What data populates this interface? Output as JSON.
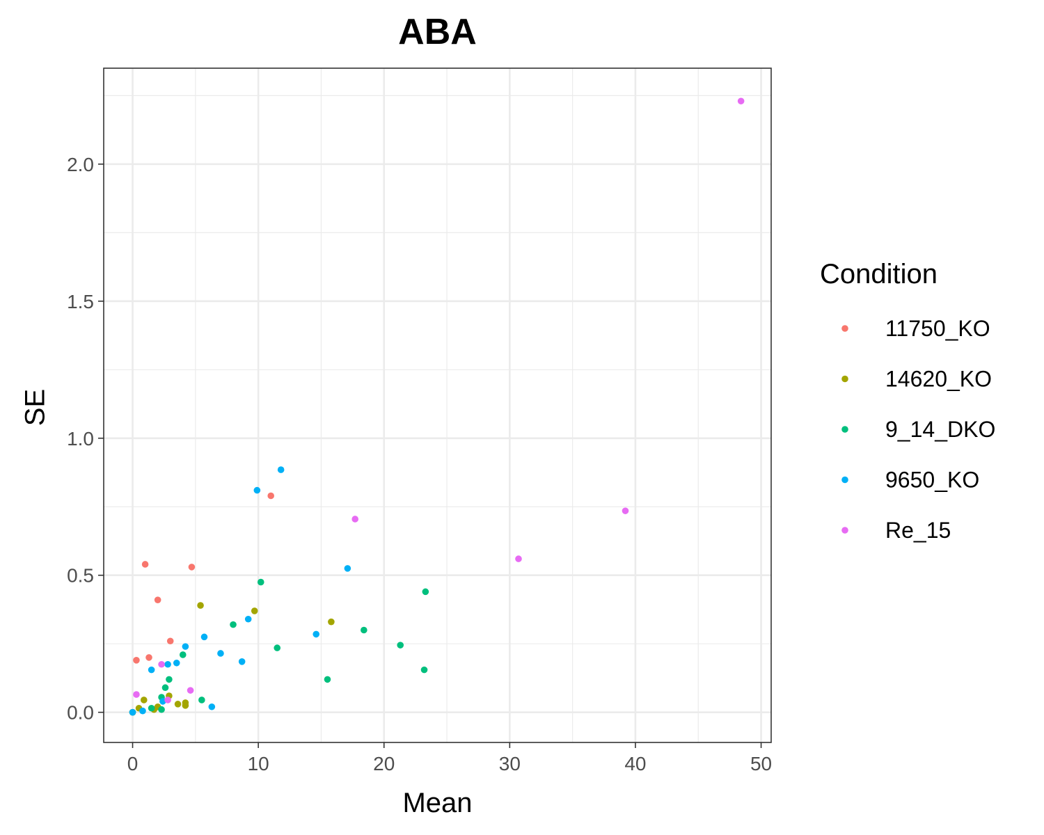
{
  "chart_data": {
    "type": "scatter",
    "title": "ABA",
    "xlabel": "Mean",
    "ylabel": "SE",
    "xlim": [
      -2.3,
      50.8
    ],
    "ylim": [
      -0.11,
      2.35
    ],
    "x_ticks": [
      0,
      10,
      20,
      30,
      40,
      50
    ],
    "x_tick_labels": [
      "0",
      "10",
      "20",
      "30",
      "40",
      "50"
    ],
    "y_ticks": [
      0.0,
      0.5,
      1.0,
      1.5,
      2.0
    ],
    "y_tick_labels": [
      "0.0",
      "0.5",
      "1.0",
      "1.5",
      "2.0"
    ],
    "grid": true,
    "legend_position": "right",
    "legend_title": "Condition",
    "series": [
      {
        "name": "11750_KO",
        "color": "#F8766D",
        "points": [
          [
            0.0,
            0.0
          ],
          [
            0.3,
            0.19
          ],
          [
            1.0,
            0.54
          ],
          [
            1.3,
            0.2
          ],
          [
            2.0,
            0.41
          ],
          [
            3.0,
            0.26
          ],
          [
            4.7,
            0.53
          ],
          [
            11.0,
            0.79
          ]
        ]
      },
      {
        "name": "14620_KO",
        "color": "#A3A500",
        "points": [
          [
            0.0,
            0.0
          ],
          [
            0.5,
            0.015
          ],
          [
            0.9,
            0.045
          ],
          [
            1.7,
            0.01
          ],
          [
            2.0,
            0.02
          ],
          [
            2.9,
            0.06
          ],
          [
            3.6,
            0.03
          ],
          [
            4.2,
            0.035
          ],
          [
            4.2,
            0.025
          ],
          [
            5.4,
            0.39
          ],
          [
            9.7,
            0.37
          ],
          [
            15.8,
            0.33
          ]
        ]
      },
      {
        "name": "9_14_DKO",
        "color": "#00BF7D",
        "points": [
          [
            0.0,
            0.0
          ],
          [
            1.5,
            0.015
          ],
          [
            2.3,
            0.055
          ],
          [
            2.3,
            0.01
          ],
          [
            2.6,
            0.09
          ],
          [
            2.9,
            0.12
          ],
          [
            4.0,
            0.21
          ],
          [
            5.5,
            0.045
          ],
          [
            8.0,
            0.32
          ],
          [
            10.2,
            0.475
          ],
          [
            11.5,
            0.235
          ],
          [
            15.5,
            0.12
          ],
          [
            18.4,
            0.3
          ],
          [
            21.3,
            0.245
          ],
          [
            23.2,
            0.155
          ],
          [
            23.3,
            0.44
          ]
        ]
      },
      {
        "name": "9650_KO",
        "color": "#00B0F6",
        "points": [
          [
            0.0,
            0.0
          ],
          [
            0.8,
            0.005
          ],
          [
            1.5,
            0.155
          ],
          [
            2.4,
            0.04
          ],
          [
            2.8,
            0.175
          ],
          [
            3.5,
            0.18
          ],
          [
            4.2,
            0.24
          ],
          [
            5.7,
            0.275
          ],
          [
            6.3,
            0.02
          ],
          [
            7.0,
            0.215
          ],
          [
            8.7,
            0.185
          ],
          [
            9.2,
            0.34
          ],
          [
            9.9,
            0.81
          ],
          [
            11.8,
            0.885
          ],
          [
            14.6,
            0.285
          ],
          [
            17.1,
            0.525
          ]
        ]
      },
      {
        "name": "Re_15",
        "color": "#E76BF3",
        "points": [
          [
            0.3,
            0.065
          ],
          [
            2.3,
            0.175
          ],
          [
            2.8,
            0.045
          ],
          [
            4.6,
            0.08
          ],
          [
            17.7,
            0.705
          ],
          [
            30.7,
            0.56
          ],
          [
            39.2,
            0.735
          ],
          [
            48.4,
            2.23
          ]
        ]
      }
    ]
  }
}
